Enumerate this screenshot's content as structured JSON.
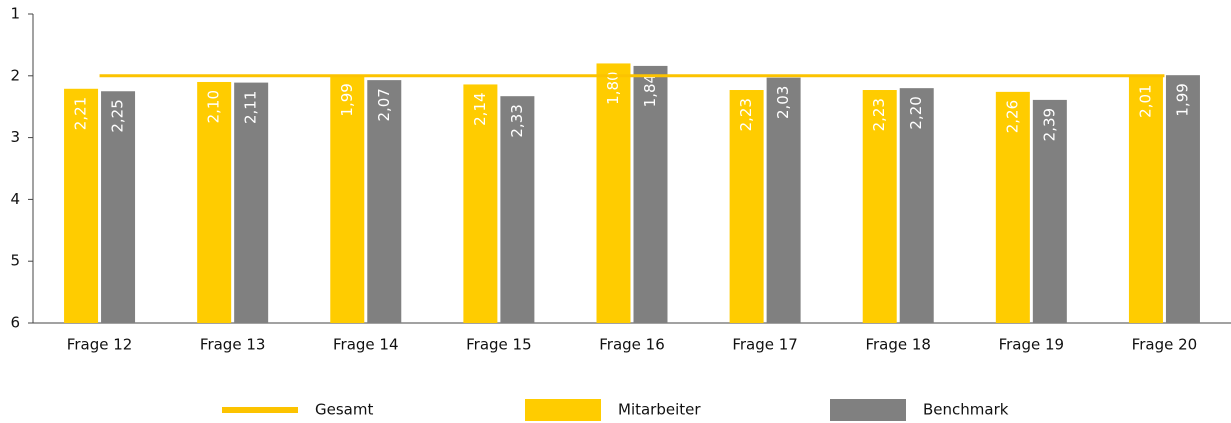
{
  "chart_data": {
    "type": "bar",
    "categories": [
      "Frage 12",
      "Frage 13",
      "Frage 14",
      "Frage 15",
      "Frage 16",
      "Frage 17",
      "Frage 18",
      "Frage 19",
      "Frage 20"
    ],
    "series": [
      {
        "name": "Gesamt",
        "type": "line",
        "color": "#fcc300",
        "values": [
          2.0,
          2.0,
          2.0,
          2.0,
          2.0,
          2.0,
          2.0,
          2.0,
          2.0
        ]
      },
      {
        "name": "Mitarbeiter",
        "type": "bar",
        "color": "#ffcc00",
        "values": [
          2.21,
          2.1,
          1.99,
          2.14,
          1.8,
          2.23,
          2.23,
          2.26,
          2.01
        ],
        "value_labels": [
          "2,21",
          "2,10",
          "1,99",
          "2,14",
          "1,80",
          "2,23",
          "2,23",
          "2,26",
          "2,01"
        ]
      },
      {
        "name": "Benchmark",
        "type": "bar",
        "color": "#808080",
        "values": [
          2.25,
          2.11,
          2.07,
          2.33,
          1.84,
          2.03,
          2.2,
          2.39,
          1.99
        ],
        "value_labels": [
          "2,25",
          "2,11",
          "2,07",
          "2,33",
          "1,84",
          "2,03",
          "2,20",
          "2,39",
          "1,99"
        ]
      }
    ],
    "ylim": [
      6,
      1
    ],
    "yticks": [
      1,
      2,
      3,
      4,
      5,
      6
    ],
    "grid": false,
    "legend": "bottom"
  }
}
